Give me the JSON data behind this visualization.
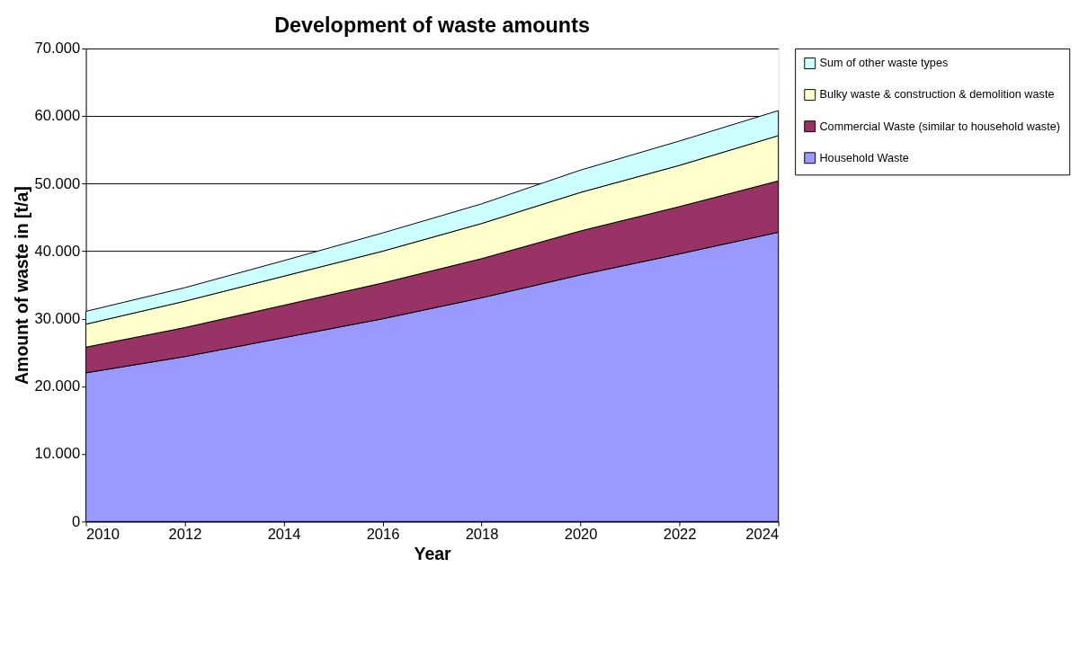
{
  "chart_data": {
    "type": "area",
    "title": "Development of waste amounts",
    "xlabel": "Year",
    "ylabel": "Amount of waste in [t/a]",
    "stacked": true,
    "grid": "y",
    "legend": "right",
    "x": [
      2010,
      2012,
      2014,
      2016,
      2018,
      2020,
      2022,
      2024
    ],
    "xlim": [
      2010,
      2024
    ],
    "xticks": [
      2010,
      2012,
      2014,
      2016,
      2018,
      2020,
      2022,
      2024
    ],
    "ylim": [
      0,
      70000
    ],
    "yticks": [
      0,
      {
        "value": 10000,
        "label": "10.000"
      },
      {
        "value": 20000,
        "label": "20.000"
      },
      {
        "value": 30000,
        "label": "30.000"
      },
      {
        "value": 40000,
        "label": "40.000"
      },
      {
        "value": 50000,
        "label": "50.000"
      },
      {
        "value": 60000,
        "label": "60.000"
      },
      {
        "value": 70000,
        "label": "70.000"
      }
    ],
    "series": [
      {
        "name": "Household Waste",
        "color": "#9999ff",
        "values": [
          22000,
          24400,
          27200,
          30000,
          33100,
          36500,
          39600,
          42800
        ]
      },
      {
        "name": "Commercial Waste (similar to household waste)",
        "color": "#993366",
        "values": [
          3800,
          4300,
          4800,
          5300,
          5800,
          6500,
          7000,
          7600
        ]
      },
      {
        "name": "Bulky waste & construction & demolition waste",
        "color": "#ffffcc",
        "values": [
          3400,
          3900,
          4300,
          4700,
          5200,
          5700,
          6100,
          6700
        ]
      },
      {
        "name": "Sum of other waste types",
        "color": "#ccffff",
        "values": [
          1900,
          2000,
          2300,
          2700,
          2900,
          3300,
          3600,
          3700
        ]
      }
    ]
  }
}
